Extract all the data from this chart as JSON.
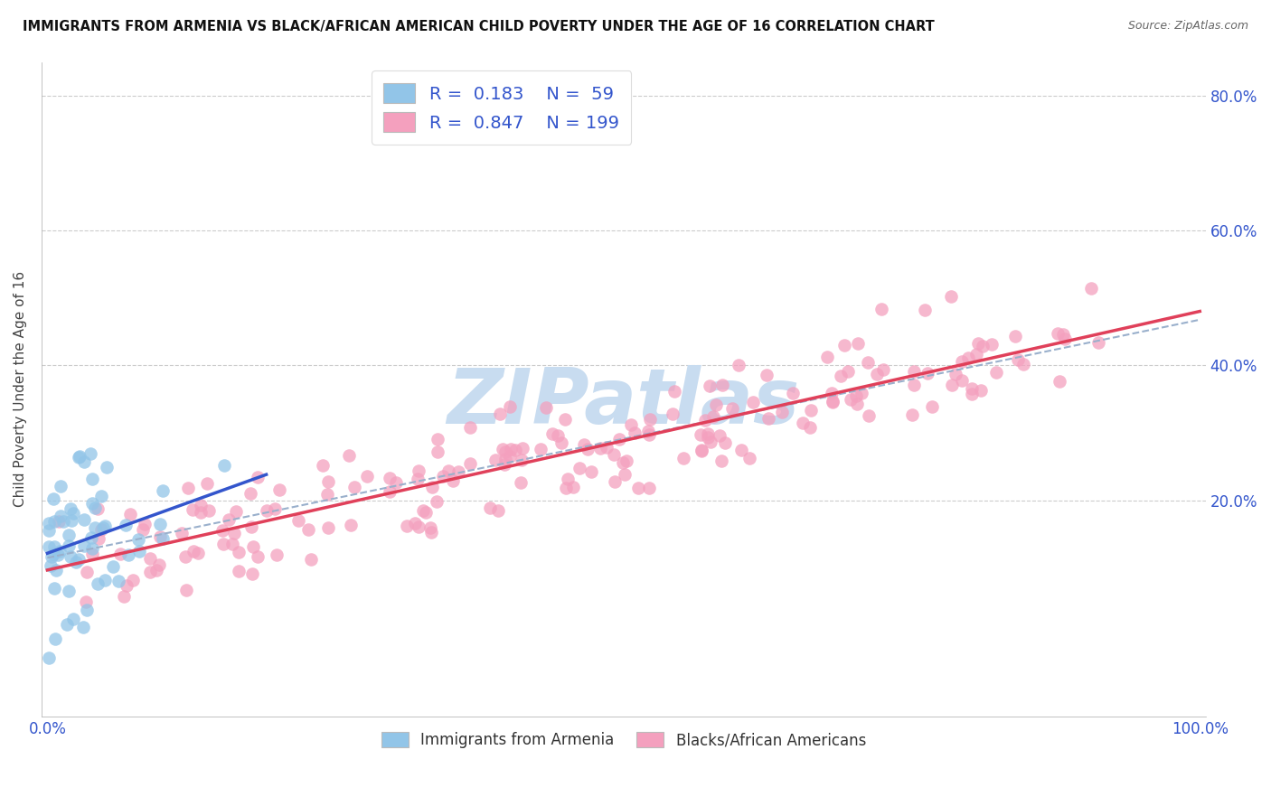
{
  "title": "IMMIGRANTS FROM ARMENIA VS BLACK/AFRICAN AMERICAN CHILD POVERTY UNDER THE AGE OF 16 CORRELATION CHART",
  "source": "Source: ZipAtlas.com",
  "ylabel": "Child Poverty Under the Age of 16",
  "r_armenia": 0.183,
  "n_armenia": 59,
  "r_black": 0.847,
  "n_black": 199,
  "color_armenia": "#92C5E8",
  "color_black": "#F4A0BE",
  "line_color_armenia": "#3355CC",
  "line_color_black": "#E0405A",
  "legend_label_armenia": "Immigrants from Armenia",
  "legend_label_black": "Blacks/African Americans",
  "watermark_text": "ZIPatlas",
  "watermark_color": "#C8DCF0",
  "ylim_low": -0.12,
  "ylim_high": 0.85,
  "xlim_low": -0.005,
  "xlim_high": 1.005
}
